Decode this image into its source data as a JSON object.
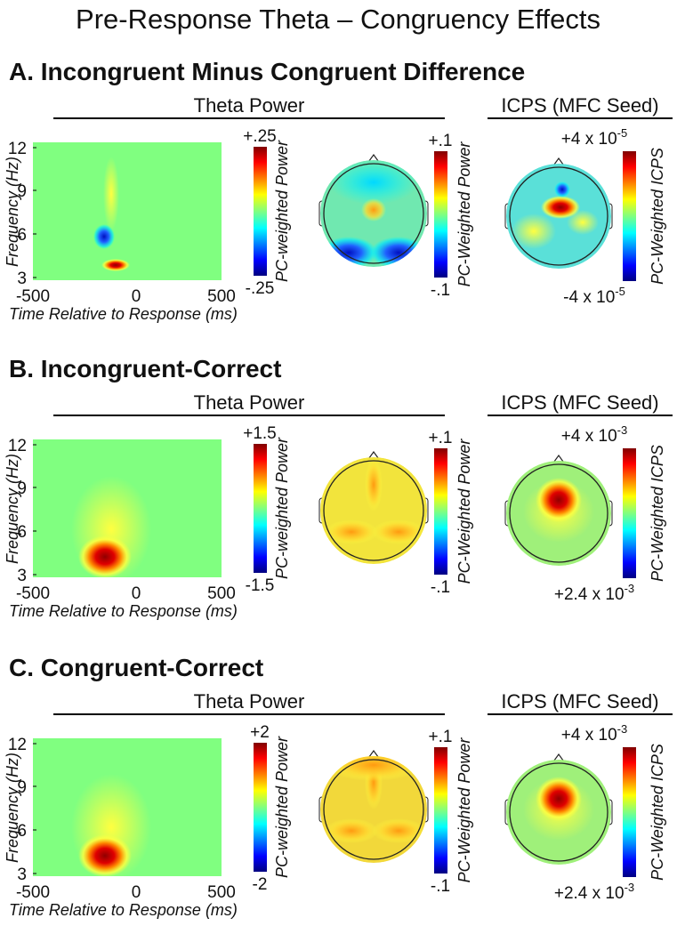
{
  "title": "Pre-Response Theta – Congruency Effects",
  "panels": [
    {
      "heading": "A. Incongruent Minus Congruent Difference",
      "theta_title": "Theta Power",
      "icps_title": "ICPS (MFC Seed)",
      "y_ticks": [
        "12",
        "9",
        "6",
        "3"
      ],
      "x_ticks": [
        "-500",
        "0",
        "500"
      ],
      "y_label": "Frequency (Hz)",
      "x_label": "Time Relative to Response (ms)",
      "power_bar": {
        "top": "+.25",
        "bottom": "-.25",
        "label": "PC-weighted Power"
      },
      "topo_bar": {
        "top": "+.1",
        "bottom": "-.1",
        "label": "PC-Weighted Power"
      },
      "icps_bar": {
        "top": {
          "base": "+4 x 10",
          "exp": "-5"
        },
        "bottom": {
          "base": "-4 x 10",
          "exp": "-5"
        },
        "label": "PC-Weighted ICPS"
      }
    },
    {
      "heading": "B. Incongruent-Correct",
      "theta_title": "Theta Power",
      "icps_title": "ICPS (MFC Seed)",
      "y_ticks": [
        "12",
        "9",
        "6",
        "3"
      ],
      "x_ticks": [
        "-500",
        "0",
        "500"
      ],
      "y_label": "Frequency (Hz)",
      "x_label": "Time Relative to Response (ms)",
      "power_bar": {
        "top": "+1.5",
        "bottom": "-1.5",
        "label": "PC-weighted Power"
      },
      "topo_bar": {
        "top": "+.1",
        "bottom": "-.1",
        "label": "PC-Weighted Power"
      },
      "icps_bar": {
        "top": {
          "base": "+4 x 10",
          "exp": "-3"
        },
        "bottom": {
          "base": "+2.4 x 10",
          "exp": "-3"
        },
        "label": "PC-Weighted ICPS"
      }
    },
    {
      "heading": "C. Congruent-Correct",
      "theta_title": "Theta Power",
      "icps_title": "ICPS (MFC Seed)",
      "y_ticks": [
        "12",
        "9",
        "6",
        "3"
      ],
      "x_ticks": [
        "-500",
        "0",
        "500"
      ],
      "y_label": "Frequency (Hz)",
      "x_label": "Time Relative to Response (ms)",
      "power_bar": {
        "top": "+2",
        "bottom": "-2",
        "label": "PC-weighted Power"
      },
      "topo_bar": {
        "top": "+.1",
        "bottom": "-.1",
        "label": "PC-Weighted Power"
      },
      "icps_bar": {
        "top": {
          "base": "+4 x 10",
          "exp": "-3"
        },
        "bottom": {
          "base": "+2.4 x 10",
          "exp": "-3"
        },
        "label": "PC-Weighted ICPS"
      }
    }
  ]
}
